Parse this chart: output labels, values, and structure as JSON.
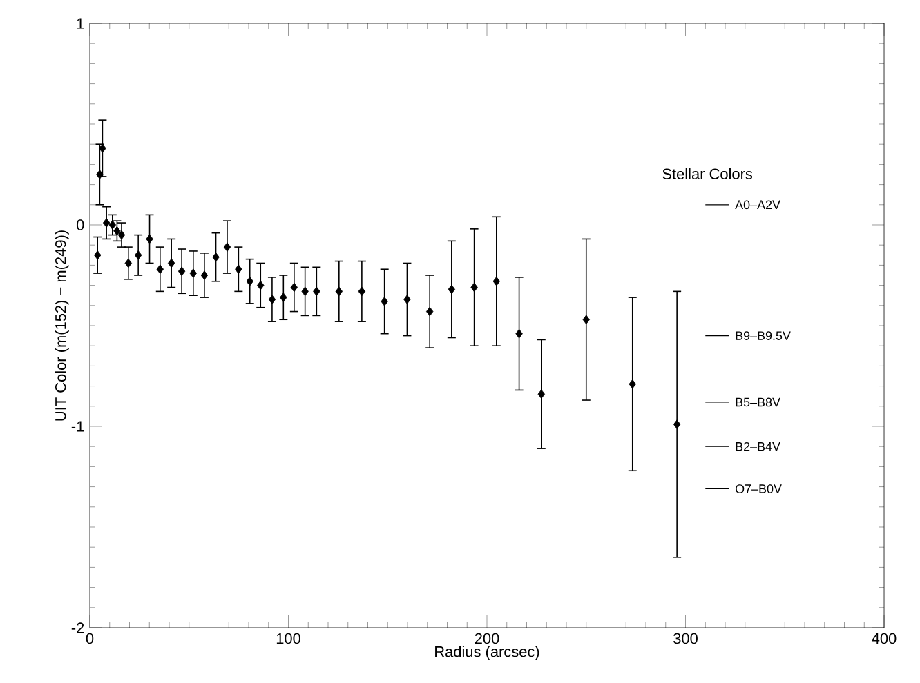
{
  "chart_data": {
    "type": "scatter",
    "xlabel": "Radius (arcsec)",
    "ylabel": "UIT Color (m(152) − m(249))",
    "x": [
      3.9,
      5.0,
      6.4,
      8.4,
      11.4,
      13.7,
      16,
      19.4,
      24.4,
      30.1,
      35.4,
      41.1,
      46.3,
      52.1,
      57.7,
      63.5,
      69.2,
      74.9,
      80.6,
      86,
      91.8,
      97.5,
      102.9,
      108.4,
      114.2,
      125.5,
      137,
      148.4,
      159.8,
      171.2,
      182.2,
      193.6,
      204.8,
      216.2,
      227.4,
      250,
      273.3,
      295.7
    ],
    "values": [
      -0.15,
      0.25,
      0.38,
      0.01,
      0.0,
      -0.03,
      -0.05,
      -0.19,
      -0.15,
      -0.07,
      -0.22,
      -0.19,
      -0.23,
      -0.24,
      -0.25,
      -0.16,
      -0.11,
      -0.22,
      -0.28,
      -0.3,
      -0.37,
      -0.36,
      -0.31,
      -0.33,
      -0.33,
      -0.33,
      -0.33,
      -0.38,
      -0.37,
      -0.43,
      -0.32,
      -0.31,
      -0.28,
      -0.54,
      -0.84,
      -0.47,
      -0.79,
      -0.99
    ],
    "errors": [
      0.09,
      0.15,
      0.14,
      0.08,
      0.05,
      0.05,
      0.06,
      0.08,
      0.1,
      0.12,
      0.11,
      0.12,
      0.11,
      0.11,
      0.11,
      0.12,
      0.13,
      0.11,
      0.11,
      0.11,
      0.11,
      0.11,
      0.12,
      0.12,
      0.12,
      0.15,
      0.15,
      0.16,
      0.18,
      0.18,
      0.24,
      0.29,
      0.32,
      0.28,
      0.27,
      0.4,
      0.43,
      0.66
    ],
    "color": "#000000",
    "marker": "diamond",
    "xlim": [
      0,
      400
    ],
    "xticks": [
      0,
      100,
      200,
      300,
      400
    ],
    "ylim": [
      -2,
      1
    ],
    "yticks": [
      -2,
      -1,
      0,
      1
    ],
    "annotations": [
      "Stellar Colors"
    ],
    "ref_lines": [
      {
        "axis": "y",
        "value": 0.1,
        "label": "A0–A2V"
      },
      {
        "axis": "y",
        "value": -0.55,
        "label": "B9–B9.5V"
      },
      {
        "axis": "y",
        "value": -0.88,
        "label": "B5–B8V"
      },
      {
        "axis": "y",
        "value": -1.1,
        "label": "B2–B4V"
      },
      {
        "axis": "y",
        "value": -1.31,
        "label": "O7–B0V"
      }
    ]
  }
}
